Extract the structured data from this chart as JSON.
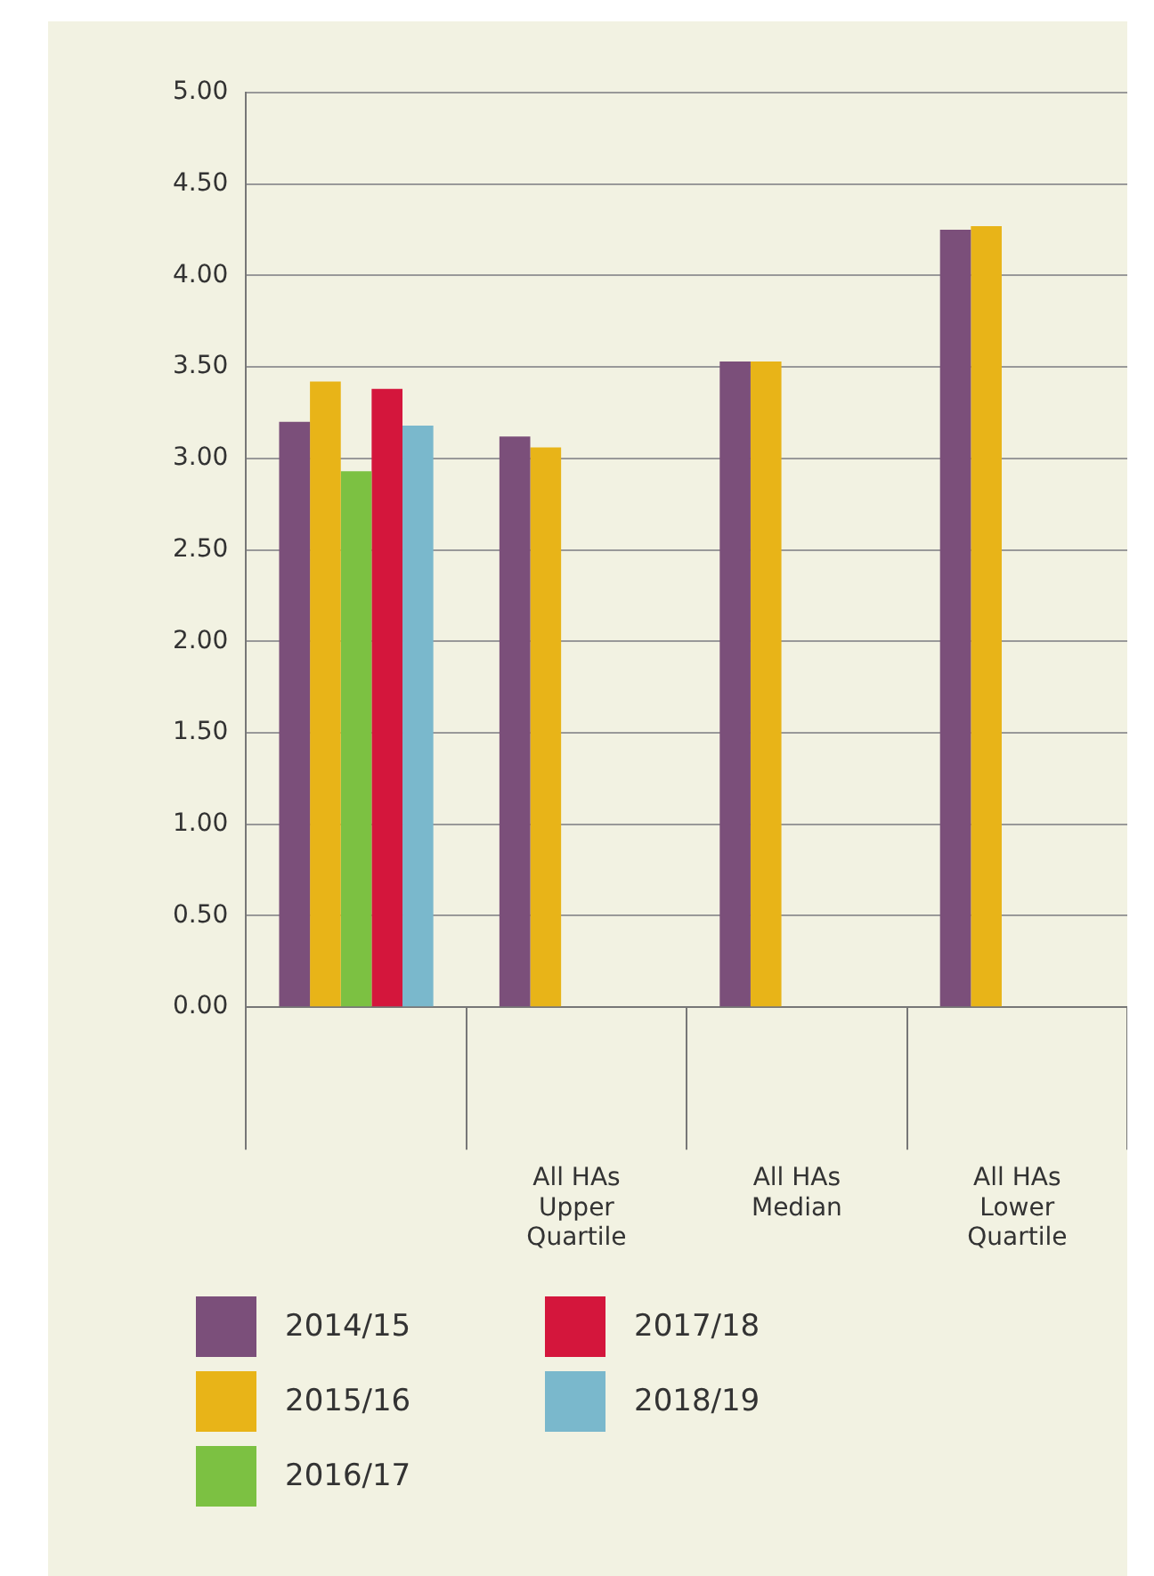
{
  "chart_data": {
    "type": "bar",
    "categories": [
      null,
      "All HAs Upper Quartile",
      "All HAs Median",
      "All HAs Lower Quartile"
    ],
    "series": [
      {
        "name": "2014/15",
        "color": "#7b4f7a",
        "values": [
          3.2,
          3.12,
          3.53,
          4.25
        ]
      },
      {
        "name": "2015/16",
        "color": "#e8b418",
        "values": [
          3.42,
          3.06,
          3.53,
          4.27
        ]
      },
      {
        "name": "2016/17",
        "color": "#7cc142",
        "values": [
          2.93,
          null,
          null,
          null
        ]
      },
      {
        "name": "2017/18",
        "color": "#d4163c",
        "values": [
          3.38,
          null,
          null,
          null
        ]
      },
      {
        "name": "2018/19",
        "color": "#7ab8cc",
        "values": [
          3.18,
          null,
          null,
          null
        ]
      }
    ],
    "ylim": [
      0,
      5
    ],
    "yticks": [
      {
        "value": 0,
        "label": "0.00"
      },
      {
        "value": 0.5,
        "label": "0.50"
      },
      {
        "value": 1,
        "label": "1.00"
      },
      {
        "value": 1.5,
        "label": "1.50"
      },
      {
        "value": 2,
        "label": "2.00"
      },
      {
        "value": 2.5,
        "label": "2.50"
      },
      {
        "value": 3,
        "label": "3.00"
      },
      {
        "value": 3.5,
        "label": "3.50"
      },
      {
        "value": 4,
        "label": "4.00"
      },
      {
        "value": 4.5,
        "label": "4.50"
      },
      {
        "value": 5,
        "label": "5.00"
      }
    ],
    "grid": "y",
    "legend": "bottom"
  }
}
